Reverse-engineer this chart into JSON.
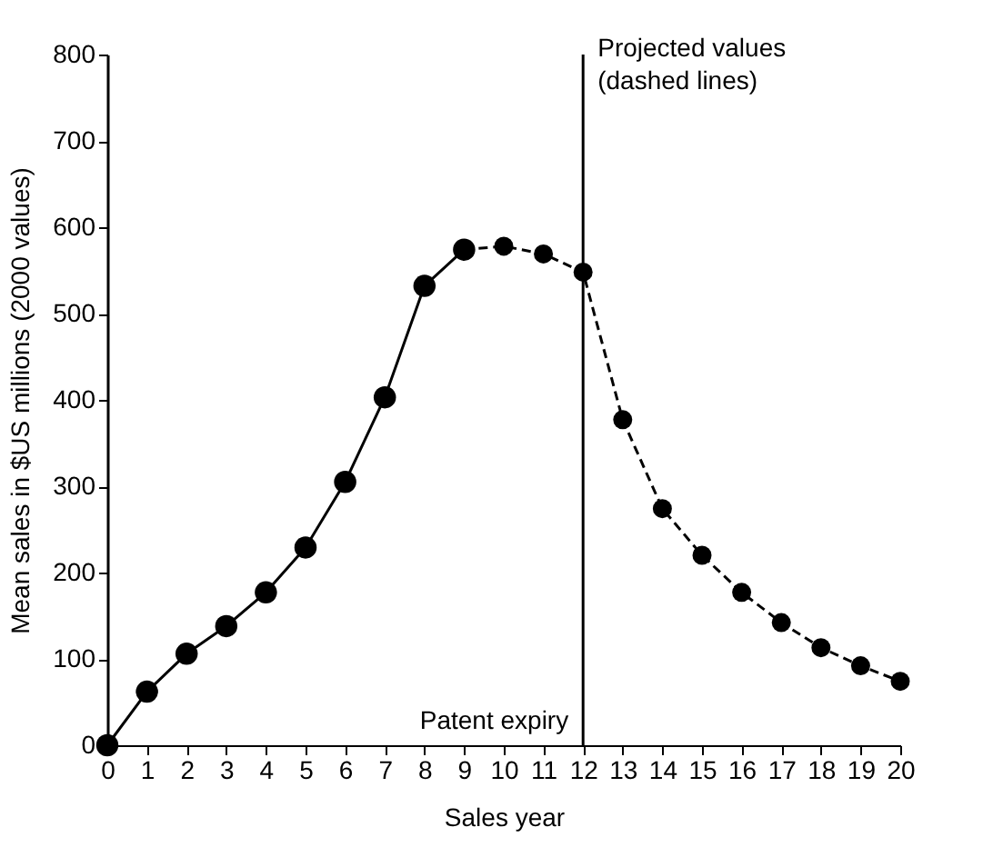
{
  "chart_data": {
    "type": "line",
    "xlabel": "Sales year",
    "ylabel": "Mean sales in $US millions (2000 values)",
    "xlim": [
      0,
      20
    ],
    "xticks": [
      0,
      1,
      2,
      3,
      4,
      5,
      6,
      7,
      8,
      9,
      10,
      11,
      12,
      13,
      14,
      15,
      16,
      17,
      18,
      19,
      20
    ],
    "ylim": [
      0,
      800
    ],
    "yticks": [
      0,
      100,
      200,
      300,
      400,
      500,
      600,
      700,
      800
    ],
    "grid": false,
    "marker": "circle",
    "series": [
      {
        "color": "#000000",
        "line_style": "solid",
        "x": [
          0,
          1,
          2,
          3,
          4,
          5,
          6,
          7,
          8,
          9
        ],
        "values": [
          0,
          62,
          106,
          138,
          177,
          229,
          305,
          403,
          532,
          574
        ]
      },
      {
        "color": "#000000",
        "line_style": "dashed",
        "x": [
          9,
          10,
          11,
          12,
          13,
          14,
          15,
          16,
          17,
          18,
          19,
          20
        ],
        "values": [
          574,
          578,
          569,
          548,
          377,
          274,
          220,
          177,
          142,
          113,
          92,
          74
        ]
      }
    ],
    "ref_lines": [
      {
        "axis": "x",
        "value": 12,
        "label": "Patent expiry",
        "color": "#000000"
      }
    ],
    "annotations": [
      "Projected values\n(dashed lines)"
    ]
  }
}
